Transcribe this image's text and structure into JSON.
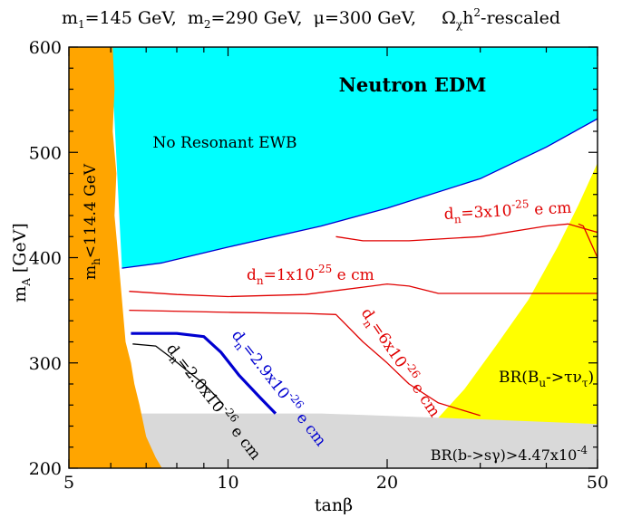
{
  "title": {
    "m1": "m",
    "m1_sub": "1",
    "m1_val": "=145 GeV,",
    "m2": "m",
    "m2_sub": "2",
    "m2_val": "=290 GeV,",
    "mu": "μ=300 GeV,",
    "omega": "Ω",
    "omega_sub": "χ",
    "omega_h": "h",
    "omega_sup": "2",
    "omega_tail": "-rescaled"
  },
  "chart_data": {
    "type": "contour",
    "xscale": "log",
    "xlim": [
      5,
      50
    ],
    "ylim": [
      200,
      600
    ],
    "xticks": [
      5,
      10,
      20,
      50
    ],
    "xtick_labels": [
      "5",
      "10",
      "20",
      "50"
    ],
    "yticks": [
      200,
      300,
      400,
      500,
      600
    ],
    "ytick_labels": [
      "200",
      "300",
      "400",
      "500",
      "600"
    ],
    "xlabel": "tanβ",
    "ylabel": {
      "main": "m",
      "sub": "A",
      "tail": "[GeV]"
    },
    "regions": [
      {
        "id": "higgs-bound",
        "color": "#ffa500",
        "label": {
          "pre": "m",
          "sub": "h",
          "post": "<114.4 GeV"
        },
        "boundary": [
          [
            6.05,
            600
          ],
          [
            6.1,
            560
          ],
          [
            6.05,
            520
          ],
          [
            6.15,
            480
          ],
          [
            6.1,
            440
          ],
          [
            6.2,
            400
          ],
          [
            6.3,
            360
          ],
          [
            6.4,
            320
          ],
          [
            6.55,
            300
          ],
          [
            6.65,
            280
          ],
          [
            6.8,
            260
          ],
          [
            7.0,
            230
          ],
          [
            7.3,
            210
          ],
          [
            7.5,
            200
          ]
        ]
      },
      {
        "id": "edm-region",
        "color": "#00ffff",
        "label": "No Resonant EWB",
        "boundary": [
          [
            6.3,
            390
          ],
          [
            7.5,
            395
          ],
          [
            10,
            410
          ],
          [
            15,
            430
          ],
          [
            20,
            447
          ],
          [
            30,
            475
          ],
          [
            40,
            505
          ],
          [
            50,
            532
          ]
        ]
      },
      {
        "id": "bsgamma-region",
        "color": "#d9d9d9",
        "label": {
          "pre": "BR(b->sγ)>4.47x10",
          "sup": "-4"
        },
        "boundary": [
          [
            6.6,
            252
          ],
          [
            15,
            252
          ],
          [
            25,
            248
          ],
          [
            35,
            246
          ],
          [
            50,
            242
          ]
        ]
      },
      {
        "id": "btau-region",
        "color": "#ffff00",
        "label": {
          "pre": "BR(B",
          "sub1": "u",
          "mid": "->τν",
          "sub2": "τ",
          "post": ")"
        },
        "boundary": [
          [
            25,
            248
          ],
          [
            28,
            275
          ],
          [
            32,
            315
          ],
          [
            37,
            360
          ],
          [
            42,
            410
          ],
          [
            46,
            450
          ],
          [
            50,
            490
          ]
        ]
      }
    ],
    "region_title": "Neutron EDM",
    "contours": [
      {
        "id": "dn-3e-25",
        "color": "#e00000",
        "width": 1.3,
        "label": {
          "pre": "d",
          "sub": "n",
          "mid": "=3x10",
          "sup": "-25",
          "post": " e cm"
        },
        "points": [
          [
            16,
            420
          ],
          [
            18,
            416
          ],
          [
            22,
            416
          ],
          [
            30,
            420
          ],
          [
            40,
            430
          ],
          [
            44,
            432
          ],
          [
            50,
            424
          ]
        ]
      },
      {
        "id": "dn-1e-25",
        "color": "#e00000",
        "width": 1.3,
        "label": {
          "pre": "d",
          "sub": "n",
          "mid": "=1x10",
          "sup": "-25",
          "post": " e cm"
        },
        "points": [
          [
            6.5,
            368
          ],
          [
            8,
            365
          ],
          [
            10,
            363
          ],
          [
            14,
            365
          ],
          [
            18,
            372
          ],
          [
            20,
            375
          ],
          [
            22,
            373
          ],
          [
            25,
            366
          ],
          [
            30,
            366
          ],
          [
            40,
            366
          ],
          [
            50,
            366
          ]
        ]
      },
      {
        "id": "dn-6e-26",
        "color": "#e00000",
        "width": 1.3,
        "label": {
          "pre": "d",
          "sub": "n",
          "mid": "=6x10",
          "sup": "-26",
          "post": " e cm"
        },
        "points": [
          [
            6.5,
            350
          ],
          [
            10,
            348
          ],
          [
            14,
            347
          ],
          [
            16,
            346
          ],
          [
            18,
            320
          ],
          [
            20,
            300
          ],
          [
            22,
            280
          ],
          [
            25,
            262
          ],
          [
            30,
            250
          ]
        ]
      },
      {
        "id": "dn-6e-26-right",
        "color": "#e00000",
        "width": 1.3,
        "points": [
          [
            46,
            432
          ],
          [
            47,
            430
          ],
          [
            50,
            400
          ]
        ]
      },
      {
        "id": "dn-2.9e-26",
        "color": "#0000d0",
        "width": 3.2,
        "label": {
          "pre": "d",
          "sub": "n",
          "mid": "=2.9x10",
          "sup": "-26",
          "post": " e cm"
        },
        "points": [
          [
            6.55,
            328
          ],
          [
            8,
            328
          ],
          [
            9,
            325
          ],
          [
            9.7,
            310
          ],
          [
            10.5,
            288
          ],
          [
            11.5,
            267
          ],
          [
            12.3,
            252
          ]
        ]
      },
      {
        "id": "dn-2.0e-26",
        "color": "#000000",
        "width": 1.3,
        "label": {
          "pre": "d",
          "sub": "n",
          "mid": "=2.0x10",
          "sup": "-26",
          "post": " e cm"
        },
        "points": [
          [
            6.6,
            318
          ],
          [
            7.3,
            316
          ],
          [
            7.8,
            305
          ],
          [
            8.4,
            292
          ],
          [
            9.0,
            280
          ],
          [
            9.5,
            268
          ],
          [
            9.8,
            260
          ]
        ]
      },
      {
        "id": "edm-boundary",
        "color": "#0000d0",
        "width": 1.3,
        "points": [
          [
            6.3,
            390
          ],
          [
            7.5,
            395
          ],
          [
            10,
            410
          ],
          [
            15,
            430
          ],
          [
            20,
            447
          ],
          [
            30,
            475
          ],
          [
            40,
            505
          ],
          [
            50,
            532
          ]
        ]
      }
    ]
  }
}
